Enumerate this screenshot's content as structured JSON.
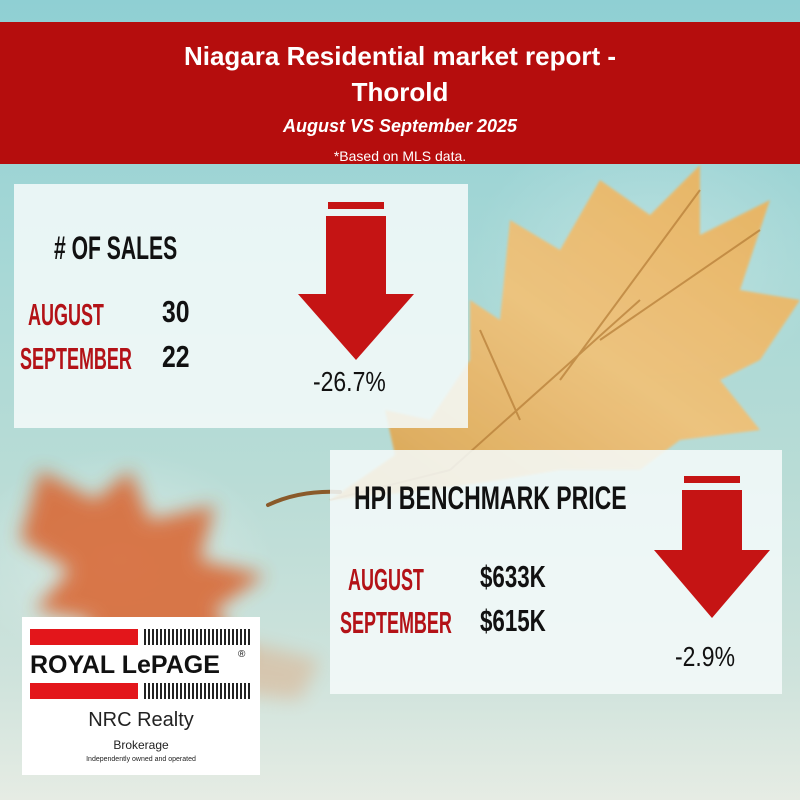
{
  "header": {
    "title_line1": "Niagara Residential market report -",
    "title_line2": "Thorold",
    "subtitle": "August VS September 2025",
    "note": "*Based on MLS data."
  },
  "sales": {
    "heading": "# OF SALES",
    "rows": [
      {
        "label": "AUGUST",
        "value": "30"
      },
      {
        "label": "SEPTEMBER",
        "value": "22"
      }
    ],
    "change": "-26.7%",
    "direction": "down"
  },
  "hpi": {
    "heading": "HPI BENCHMARK PRICE",
    "rows": [
      {
        "label": "AUGUST",
        "value": "$633K"
      },
      {
        "label": "SEPTEMBER",
        "value": "$615K"
      }
    ],
    "change": "-2.9%",
    "direction": "down"
  },
  "logo": {
    "brand": "ROYAL LePAGE",
    "registered": "®",
    "office": "NRC Realty",
    "type": "Brokerage",
    "tagline": "Independently owned and operated"
  },
  "colors": {
    "brand_red": "#b50d0d",
    "label_red": "#b31217",
    "arrow_red": "#c51414",
    "logo_red": "#e3161b"
  },
  "icons": [
    "down-arrow-icon",
    "autumn-leaf-image"
  ]
}
